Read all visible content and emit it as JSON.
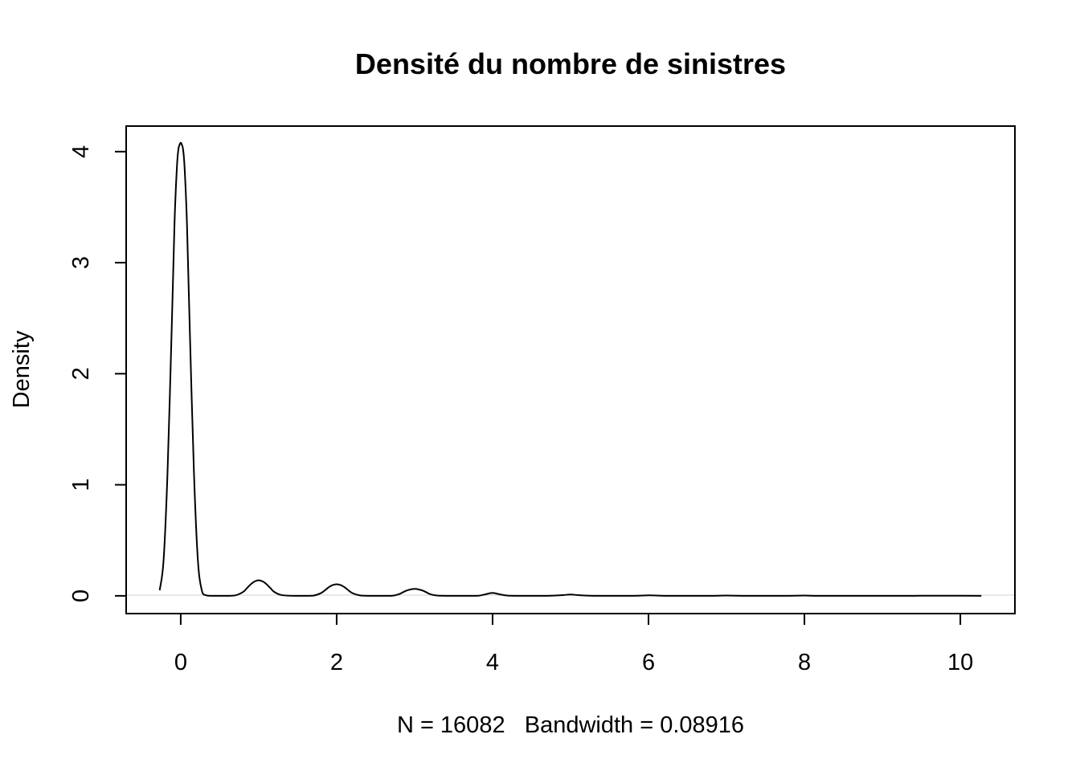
{
  "chart_data": {
    "type": "line",
    "title": "Densité du nombre de sinistres",
    "xlabel": "N = 16082   Bandwidth = 0.08916",
    "ylabel": "Density",
    "xlim": [
      -0.7,
      10.7
    ],
    "ylim": [
      -0.16,
      4.23
    ],
    "x_ticks": [
      "0",
      "2",
      "4",
      "6",
      "8",
      "10"
    ],
    "y_ticks": [
      "0",
      "1",
      "2",
      "3",
      "4"
    ],
    "grid": false,
    "series": [
      {
        "x": [
          -0.27,
          -0.22,
          -0.17,
          -0.12,
          -0.08,
          -0.05,
          -0.03,
          -0.01,
          0.0,
          0.01,
          0.03,
          0.05,
          0.08,
          0.12,
          0.17,
          0.22,
          0.27,
          0.32,
          0.4,
          0.5,
          0.6,
          0.7,
          0.8,
          0.85,
          0.9,
          0.95,
          1.0,
          1.05,
          1.1,
          1.15,
          1.2,
          1.3,
          1.5,
          1.7,
          1.8,
          1.85,
          1.9,
          1.95,
          2.0,
          2.05,
          2.1,
          2.15,
          2.2,
          2.3,
          2.5,
          2.7,
          2.8,
          2.85,
          2.9,
          2.95,
          3.0,
          3.05,
          3.1,
          3.15,
          3.2,
          3.3,
          3.6,
          3.8,
          3.9,
          4.0,
          4.1,
          4.2,
          4.4,
          4.7,
          4.9,
          5.0,
          5.1,
          5.3,
          5.8,
          6.0,
          6.2,
          6.8,
          7.0,
          7.2,
          7.8,
          8.0,
          8.2,
          9.0,
          10.0,
          10.27
        ],
        "y": [
          0.05,
          0.32,
          1.1,
          2.3,
          3.35,
          3.85,
          4.02,
          4.07,
          4.08,
          4.07,
          4.02,
          3.85,
          3.35,
          2.3,
          1.1,
          0.32,
          0.05,
          0.006,
          0.0,
          0.0,
          0.0,
          0.004,
          0.035,
          0.07,
          0.105,
          0.13,
          0.14,
          0.13,
          0.105,
          0.07,
          0.035,
          0.006,
          0.0,
          0.002,
          0.025,
          0.05,
          0.078,
          0.097,
          0.104,
          0.097,
          0.078,
          0.05,
          0.025,
          0.004,
          0.0,
          0.0,
          0.015,
          0.032,
          0.048,
          0.058,
          0.062,
          0.058,
          0.048,
          0.032,
          0.015,
          0.002,
          0.0,
          0.0,
          0.012,
          0.026,
          0.012,
          0.002,
          0.0,
          0.0,
          0.006,
          0.012,
          0.006,
          0.0,
          0.0,
          0.005,
          0.0,
          0.0,
          0.003,
          0.0,
          0.0,
          0.003,
          0.0,
          0.0,
          0.001,
          0.0
        ]
      }
    ]
  }
}
